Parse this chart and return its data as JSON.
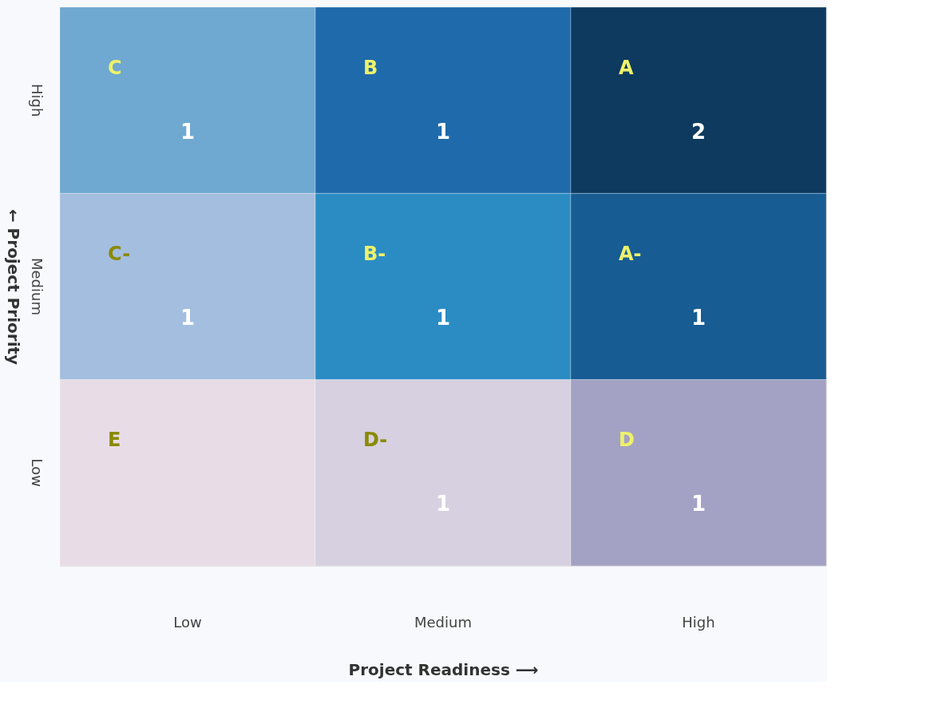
{
  "chart_data": {
    "type": "heatmap",
    "xlabel": "Project Readiness ⟶",
    "ylabel": "← Project Priority",
    "categories": [
      "Low",
      "Medium",
      "High"
    ],
    "y_categories": [
      "High",
      "Medium",
      "Low"
    ],
    "cells": [
      [
        1,
        1,
        2
      ],
      [
        1,
        1,
        1
      ],
      [
        null,
        1,
        1
      ]
    ],
    "colors": [
      [
        "#6fa8d0",
        "#1f6aaa",
        "#0d3a5e"
      ],
      [
        "#a3bedf",
        "#2b8cc4",
        "#175c93"
      ],
      [
        "#e8dde6",
        "#d6d0e0",
        "#a4a2c4"
      ]
    ],
    "data_labels": true,
    "annotations": [
      "C",
      "B",
      "A",
      "C-",
      "B-",
      "A-",
      "E",
      "D-",
      "D"
    ]
  }
}
